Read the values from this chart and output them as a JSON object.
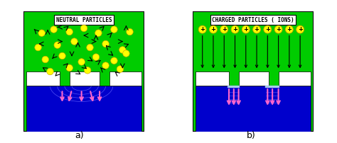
{
  "bg_color": "#00CC00",
  "panel_border": "#000000",
  "blue_color": "#0000CC",
  "white_color": "#FFFFFF",
  "yellow_color": "#FFFF00",
  "yellow_border": "#CCAA00",
  "pink_color": "#FF66CC",
  "arrow_color": "#000000",
  "label_a": "a)",
  "label_b": "b)",
  "title_a": "NEUTRAL PARTICLES",
  "title_b": "CHARGED PARTICLES ( IONS)",
  "fig_width": 4.74,
  "fig_height": 2.02,
  "dpi": 100
}
